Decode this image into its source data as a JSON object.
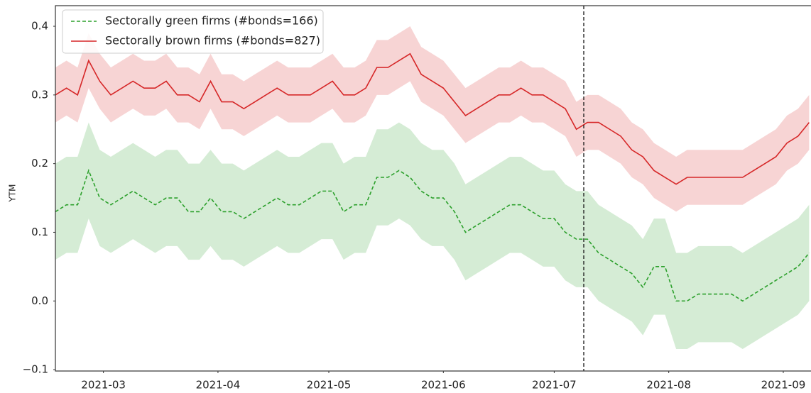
{
  "chart_data": {
    "type": "line",
    "ylabel": "YTM",
    "x": [
      0,
      3,
      6,
      9,
      12,
      15,
      18,
      21,
      24,
      27,
      30,
      33,
      36,
      39,
      42,
      45,
      48,
      51,
      54,
      57,
      60,
      63,
      66,
      69,
      72,
      75,
      78,
      81,
      84,
      87,
      90,
      93,
      96,
      99,
      102,
      105,
      108,
      111,
      114,
      117,
      120,
      123,
      126,
      129,
      132,
      135,
      138,
      141,
      144,
      147,
      150,
      153,
      156,
      159,
      162,
      165,
      168,
      171,
      174,
      177,
      180,
      183,
      186,
      189,
      192,
      195,
      198,
      201,
      204
    ],
    "xlim": [
      0,
      204.5
    ],
    "xticks": [
      {
        "value": 13,
        "label": "2021-03"
      },
      {
        "value": 44,
        "label": "2021-04"
      },
      {
        "value": 74,
        "label": "2021-05"
      },
      {
        "value": 105,
        "label": "2021-06"
      },
      {
        "value": 135,
        "label": "2021-07"
      },
      {
        "value": 166,
        "label": "2021-08"
      },
      {
        "value": 197,
        "label": "2021-09"
      }
    ],
    "ylim": [
      -0.102,
      0.43
    ],
    "yticks": [
      {
        "value": -0.1,
        "label": "−0.1"
      },
      {
        "value": 0,
        "label": "0.0"
      },
      0.1,
      0.2,
      0.3,
      0.4
    ],
    "vlines": [
      143
    ],
    "legend": "upper left",
    "grid": false,
    "series": [
      {
        "name": "Sectorally green firms (#bonds=166)",
        "color": "#2ca02c",
        "dash": true,
        "values": [
          0.13,
          0.14,
          0.14,
          0.19,
          0.15,
          0.14,
          0.15,
          0.16,
          0.15,
          0.14,
          0.15,
          0.15,
          0.13,
          0.13,
          0.15,
          0.13,
          0.13,
          0.12,
          0.13,
          0.14,
          0.15,
          0.14,
          0.14,
          0.15,
          0.16,
          0.16,
          0.13,
          0.14,
          0.14,
          0.18,
          0.18,
          0.19,
          0.18,
          0.16,
          0.15,
          0.15,
          0.13,
          0.1,
          0.11,
          0.12,
          0.13,
          0.14,
          0.14,
          0.13,
          0.12,
          0.12,
          0.1,
          0.09,
          0.09,
          0.07,
          0.06,
          0.05,
          0.04,
          0.02,
          0.05,
          0.05,
          0.0,
          0.0,
          0.01,
          0.01,
          0.01,
          0.01,
          0.0,
          0.01,
          0.02,
          0.03,
          0.04,
          0.05,
          0.07
        ],
        "upper": [
          0.2,
          0.21,
          0.21,
          0.26,
          0.22,
          0.21,
          0.22,
          0.23,
          0.22,
          0.21,
          0.22,
          0.22,
          0.2,
          0.2,
          0.22,
          0.2,
          0.2,
          0.19,
          0.2,
          0.21,
          0.22,
          0.21,
          0.21,
          0.22,
          0.23,
          0.23,
          0.2,
          0.21,
          0.21,
          0.25,
          0.25,
          0.26,
          0.25,
          0.23,
          0.22,
          0.22,
          0.2,
          0.17,
          0.18,
          0.19,
          0.2,
          0.21,
          0.21,
          0.2,
          0.19,
          0.19,
          0.17,
          0.16,
          0.16,
          0.14,
          0.13,
          0.12,
          0.11,
          0.09,
          0.12,
          0.12,
          0.07,
          0.07,
          0.08,
          0.08,
          0.08,
          0.08,
          0.07,
          0.08,
          0.09,
          0.1,
          0.11,
          0.12,
          0.14
        ],
        "lower": [
          0.06,
          0.07,
          0.07,
          0.12,
          0.08,
          0.07,
          0.08,
          0.09,
          0.08,
          0.07,
          0.08,
          0.08,
          0.06,
          0.06,
          0.08,
          0.06,
          0.06,
          0.05,
          0.06,
          0.07,
          0.08,
          0.07,
          0.07,
          0.08,
          0.09,
          0.09,
          0.06,
          0.07,
          0.07,
          0.11,
          0.11,
          0.12,
          0.11,
          0.09,
          0.08,
          0.08,
          0.06,
          0.03,
          0.04,
          0.05,
          0.06,
          0.07,
          0.07,
          0.06,
          0.05,
          0.05,
          0.03,
          0.02,
          0.02,
          0.0,
          -0.01,
          -0.02,
          -0.03,
          -0.05,
          -0.02,
          -0.02,
          -0.07,
          -0.07,
          -0.06,
          -0.06,
          -0.06,
          -0.06,
          -0.07,
          -0.06,
          -0.05,
          -0.04,
          -0.03,
          -0.02,
          0.0
        ]
      },
      {
        "name": "Sectorally brown firms (#bonds=827)",
        "color": "#d62728",
        "dash": false,
        "values": [
          0.3,
          0.31,
          0.3,
          0.35,
          0.32,
          0.3,
          0.31,
          0.32,
          0.31,
          0.31,
          0.32,
          0.3,
          0.3,
          0.29,
          0.32,
          0.29,
          0.29,
          0.28,
          0.29,
          0.3,
          0.31,
          0.3,
          0.3,
          0.3,
          0.31,
          0.32,
          0.3,
          0.3,
          0.31,
          0.34,
          0.34,
          0.35,
          0.36,
          0.33,
          0.32,
          0.31,
          0.29,
          0.27,
          0.28,
          0.29,
          0.3,
          0.3,
          0.31,
          0.3,
          0.3,
          0.29,
          0.28,
          0.25,
          0.26,
          0.26,
          0.25,
          0.24,
          0.22,
          0.21,
          0.19,
          0.18,
          0.17,
          0.18,
          0.18,
          0.18,
          0.18,
          0.18,
          0.18,
          0.19,
          0.2,
          0.21,
          0.23,
          0.24,
          0.26
        ],
        "upper": [
          0.34,
          0.35,
          0.34,
          0.39,
          0.36,
          0.34,
          0.35,
          0.36,
          0.35,
          0.35,
          0.36,
          0.34,
          0.34,
          0.33,
          0.36,
          0.33,
          0.33,
          0.32,
          0.33,
          0.34,
          0.35,
          0.34,
          0.34,
          0.34,
          0.35,
          0.36,
          0.34,
          0.34,
          0.35,
          0.38,
          0.38,
          0.39,
          0.4,
          0.37,
          0.36,
          0.35,
          0.33,
          0.31,
          0.32,
          0.33,
          0.34,
          0.34,
          0.35,
          0.34,
          0.34,
          0.33,
          0.32,
          0.29,
          0.3,
          0.3,
          0.29,
          0.28,
          0.26,
          0.25,
          0.23,
          0.22,
          0.21,
          0.22,
          0.22,
          0.22,
          0.22,
          0.22,
          0.22,
          0.23,
          0.24,
          0.25,
          0.27,
          0.28,
          0.3
        ],
        "lower": [
          0.26,
          0.27,
          0.26,
          0.31,
          0.28,
          0.26,
          0.27,
          0.28,
          0.27,
          0.27,
          0.28,
          0.26,
          0.26,
          0.25,
          0.28,
          0.25,
          0.25,
          0.24,
          0.25,
          0.26,
          0.27,
          0.26,
          0.26,
          0.26,
          0.27,
          0.28,
          0.26,
          0.26,
          0.27,
          0.3,
          0.3,
          0.31,
          0.32,
          0.29,
          0.28,
          0.27,
          0.25,
          0.23,
          0.24,
          0.25,
          0.26,
          0.26,
          0.27,
          0.26,
          0.26,
          0.25,
          0.24,
          0.21,
          0.22,
          0.22,
          0.21,
          0.2,
          0.18,
          0.17,
          0.15,
          0.14,
          0.13,
          0.14,
          0.14,
          0.14,
          0.14,
          0.14,
          0.14,
          0.15,
          0.16,
          0.17,
          0.19,
          0.2,
          0.22
        ]
      }
    ]
  }
}
